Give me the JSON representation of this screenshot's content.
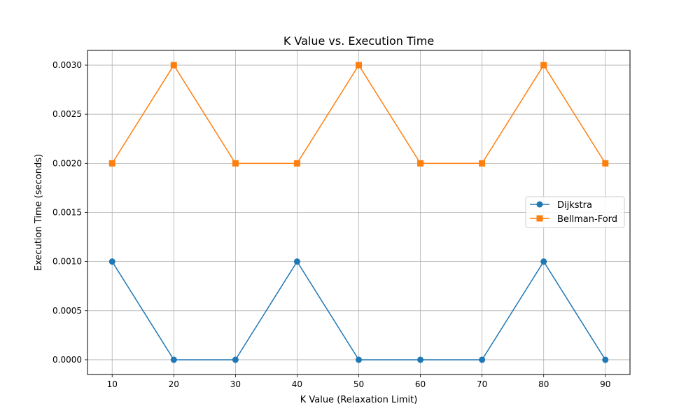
{
  "chart_data": {
    "type": "line",
    "title": "K Value vs. Execution Time",
    "xlabel": "K Value (Relaxation Limit)",
    "ylabel": "Execution Time (seconds)",
    "x": [
      10,
      20,
      30,
      40,
      50,
      60,
      70,
      80,
      90
    ],
    "xlim": [
      6,
      94
    ],
    "ylim": [
      -0.00015,
      0.00315
    ],
    "x_ticks": [
      10,
      20,
      30,
      40,
      50,
      60,
      70,
      80,
      90
    ],
    "x_tick_labels": [
      "10",
      "20",
      "30",
      "40",
      "50",
      "60",
      "70",
      "80",
      "90"
    ],
    "y_ticks": [
      0.0,
      0.0005,
      0.001,
      0.0015,
      0.002,
      0.0025,
      0.003
    ],
    "y_tick_labels": [
      "0.0000",
      "0.0005",
      "0.0010",
      "0.0015",
      "0.0020",
      "0.0025",
      "0.0030"
    ],
    "grid": true,
    "legend_position": "center-right",
    "series": [
      {
        "name": "Dijkstra",
        "color": "#1f77b4",
        "marker": "circle",
        "values": [
          0.001,
          0.0,
          0.0,
          0.001,
          0.0,
          0.0,
          0.0,
          0.001,
          0.0
        ]
      },
      {
        "name": "Bellman-Ford",
        "color": "#ff7f0e",
        "marker": "square",
        "values": [
          0.002,
          0.003,
          0.002,
          0.002,
          0.003,
          0.002,
          0.002,
          0.003,
          0.002
        ]
      }
    ]
  }
}
